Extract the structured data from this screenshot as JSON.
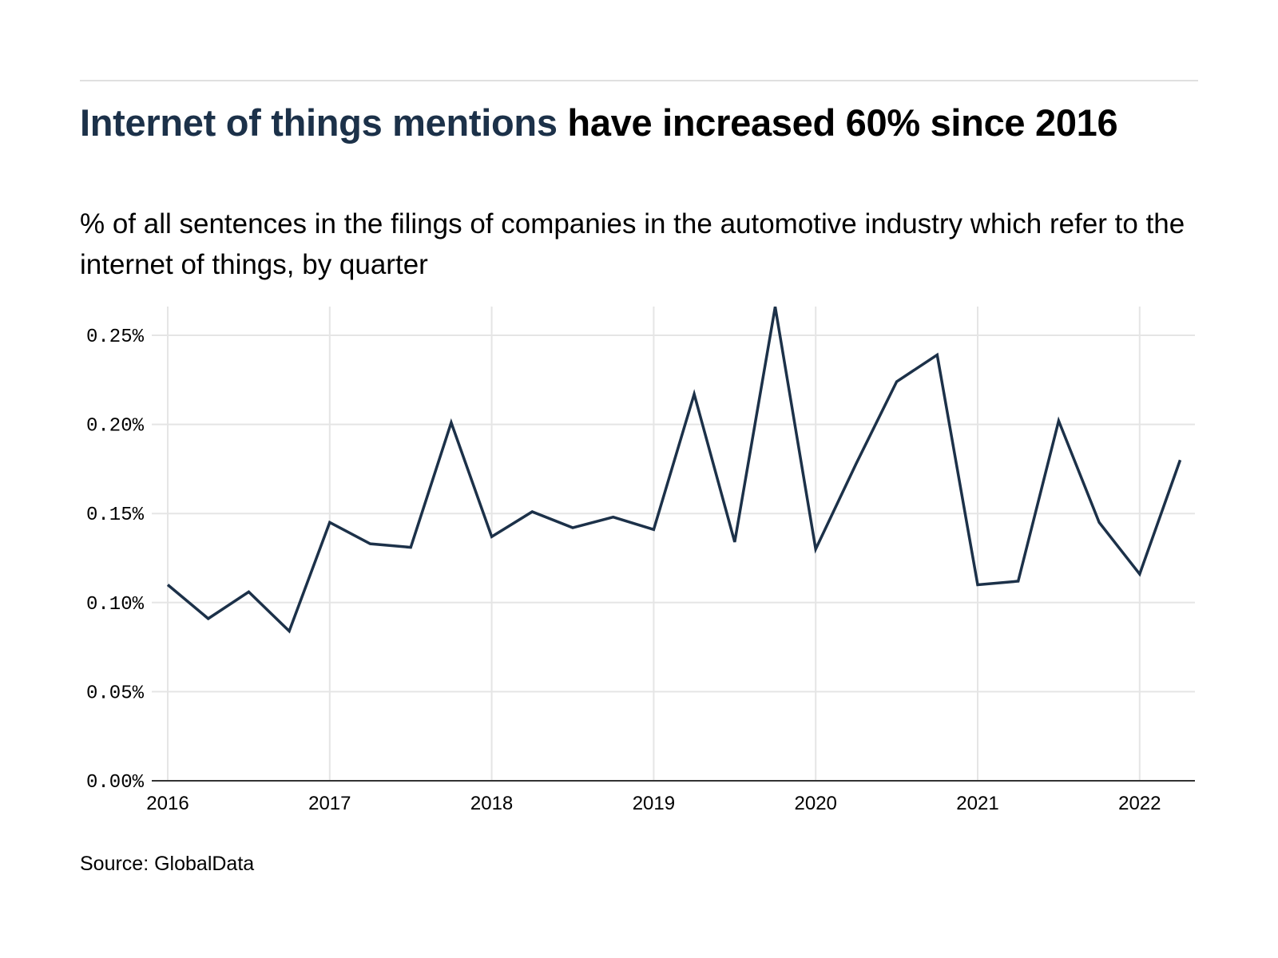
{
  "header": {
    "title_highlight": "Internet of things mentions",
    "title_rest": " have increased 60% since 2016",
    "subtitle": "% of all sentences in the filings of companies in the automotive industry which refer to the internet of things, by quarter"
  },
  "footer": {
    "source": "Source: GlobalData"
  },
  "colors": {
    "line": "#1c3149",
    "title_highlight": "#1c3149",
    "grid": "#e5e5e5",
    "axis": "#333333"
  },
  "chart_data": {
    "type": "line",
    "title": "Internet of things mentions have increased 60% since 2016",
    "subtitle": "% of all sentences in the filings of companies in the automotive industry which refer to the internet of things, by quarter",
    "xlabel": "",
    "ylabel": "",
    "grid": true,
    "legend": "none",
    "x": [
      "2016 Q1",
      "2016 Q2",
      "2016 Q3",
      "2016 Q4",
      "2017 Q1",
      "2017 Q2",
      "2017 Q3",
      "2017 Q4",
      "2018 Q1",
      "2018 Q2",
      "2018 Q3",
      "2018 Q4",
      "2019 Q1",
      "2019 Q2",
      "2019 Q3",
      "2019 Q4",
      "2020 Q1",
      "2020 Q2",
      "2020 Q3",
      "2020 Q4",
      "2021 Q1",
      "2021 Q2",
      "2021 Q3",
      "2021 Q4",
      "2022 Q1",
      "2022 Q2"
    ],
    "x_numeric": [
      2016.0,
      2016.25,
      2016.5,
      2016.75,
      2017.0,
      2017.25,
      2017.5,
      2017.75,
      2018.0,
      2018.25,
      2018.5,
      2018.75,
      2019.0,
      2019.25,
      2019.5,
      2019.75,
      2020.0,
      2020.25,
      2020.5,
      2020.75,
      2021.0,
      2021.25,
      2021.5,
      2021.75,
      2022.0,
      2022.25
    ],
    "series": [
      {
        "name": "Internet of things mentions (%)",
        "values": [
          0.11,
          0.091,
          0.106,
          0.084,
          0.145,
          0.133,
          0.131,
          0.201,
          0.137,
          0.151,
          0.142,
          0.148,
          0.141,
          0.217,
          0.134,
          0.266,
          0.13,
          0.178,
          0.224,
          0.239,
          0.11,
          0.112,
          0.202,
          0.145,
          0.116,
          0.18
        ]
      }
    ],
    "xlim": [
      2015.95,
      2022.4
    ],
    "ylim": [
      0,
      0.266
    ],
    "x_ticks": [
      2016,
      2017,
      2018,
      2019,
      2020,
      2021,
      2022
    ],
    "x_tick_labels": [
      "2016",
      "2017",
      "2018",
      "2019",
      "2020",
      "2021",
      "2022"
    ],
    "y_ticks": [
      0,
      0.05,
      0.1,
      0.15,
      0.2,
      0.25
    ],
    "y_tick_labels": [
      "0.00%",
      "0.05%",
      "0.10%",
      "0.15%",
      "0.20%",
      "0.25%"
    ],
    "source": "Source: GlobalData"
  }
}
